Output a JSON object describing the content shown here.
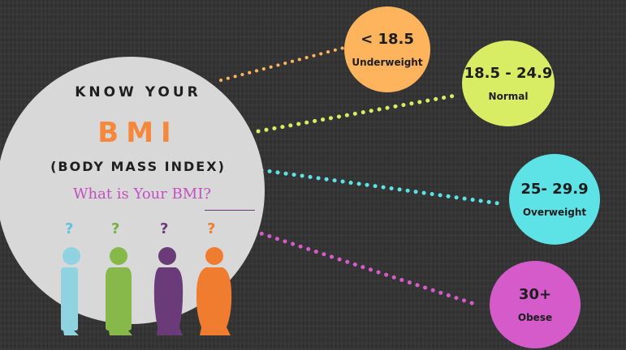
{
  "title": {
    "line1": "KNOW YOUR",
    "line2": "BMI",
    "line3": "(BODY MASS INDEX)",
    "question": "What is Your BMI?"
  },
  "categories": [
    {
      "range": "< 18.5",
      "label": "Underweight",
      "color": "#fdb45c"
    },
    {
      "range": "18.5 - 24.9",
      "label": "Normal",
      "color": "#d8ed64"
    },
    {
      "range": "25- 29.9",
      "label": "Overweight",
      "color": "#5de2e6"
    },
    {
      "range": "30+",
      "label": "Obese",
      "color": "#d55bcb"
    }
  ],
  "figures": [
    {
      "mark": "?",
      "color": "#8fd3e0",
      "qcolor": "#5cc3de"
    },
    {
      "mark": "?",
      "color": "#86b84a",
      "qcolor": "#76b042"
    },
    {
      "mark": "?",
      "color": "#6b3a78",
      "qcolor": "#6b3a78"
    },
    {
      "mark": "?",
      "color": "#f07c30",
      "qcolor": "#f07c30"
    }
  ],
  "colors": {
    "background": "#333333",
    "main_circle": "#d8d8d8",
    "bmi_accent": "#f5883a",
    "question_text": "#c34fc0"
  }
}
